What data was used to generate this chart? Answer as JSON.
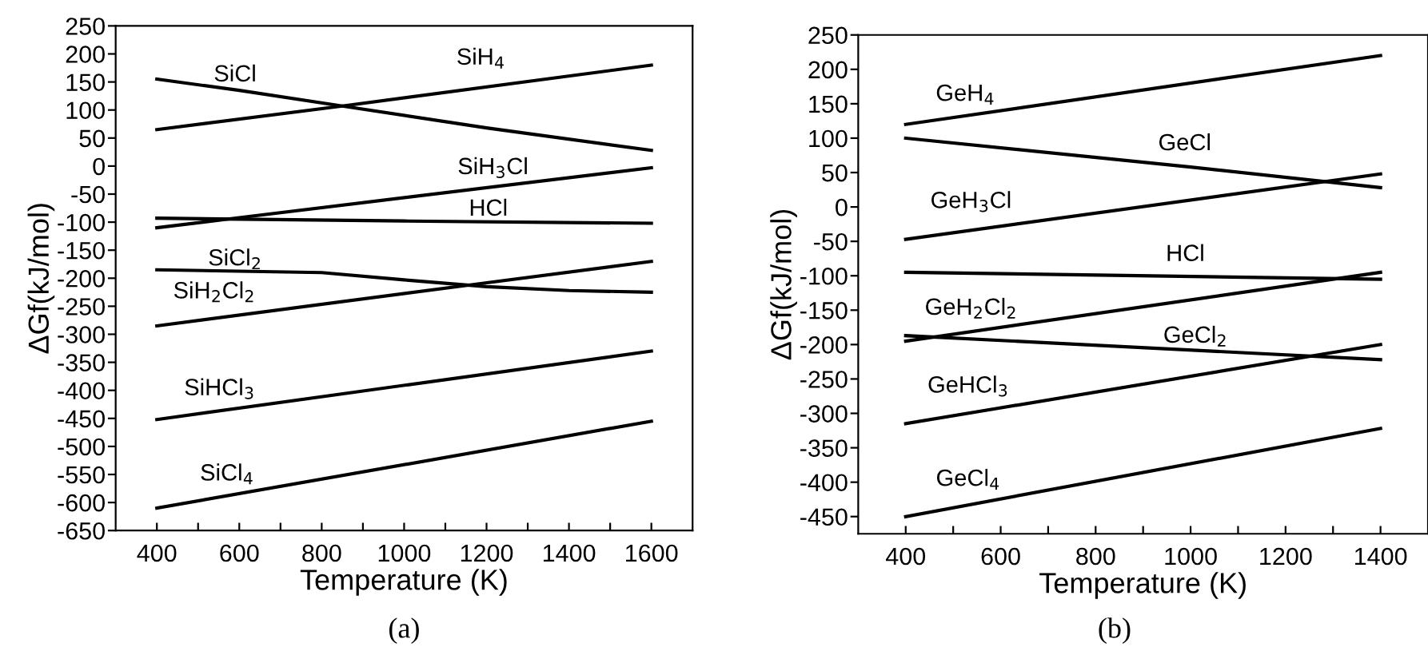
{
  "chart_data": [
    {
      "type": "line",
      "xlabel": "Temperature (K)",
      "ylabel": "ΔGf(kJ/mol)",
      "xlim": [
        300,
        1700
      ],
      "ylim": [
        -650,
        250
      ],
      "xticks": [
        400,
        {
          "value": 500,
          "label": null
        },
        600,
        {
          "value": 700,
          "label": null
        },
        800,
        {
          "value": 900,
          "label": null
        },
        1000,
        {
          "value": 1100,
          "label": null
        },
        1200,
        {
          "value": 1300,
          "label": null
        },
        1400,
        {
          "value": 1500,
          "label": null
        },
        1600
      ],
      "yticks": [
        -650,
        -600,
        -550,
        -500,
        -450,
        -400,
        -350,
        -300,
        -250,
        -200,
        -150,
        -100,
        -50,
        0,
        50,
        100,
        150,
        200,
        250
      ],
      "grid": false,
      "legend": false,
      "marker": "none",
      "line_style": "solid",
      "series": [
        {
          "name": "SiH$_{4}$",
          "color": "#000000",
          "x": [
            400,
            850,
            1600
          ],
          "values": [
            65,
            107,
            180
          ]
        },
        {
          "name": "SiCl",
          "color": "#000000",
          "x": [
            400,
            600,
            850,
            1200,
            1600
          ],
          "values": [
            155,
            135,
            107,
            68,
            28
          ]
        },
        {
          "name": "SiH$_{3}$Cl",
          "color": "#000000",
          "x": [
            400,
            600,
            1600
          ],
          "values": [
            -110,
            -92,
            -3
          ]
        },
        {
          "name": "HCl",
          "color": "#000000",
          "x": [
            400,
            1000,
            1600
          ],
          "values": [
            -93,
            -98,
            -102
          ]
        },
        {
          "name": "SiCl$_{2}$",
          "color": "#000000",
          "x": [
            400,
            800,
            1000,
            1200,
            1400,
            1600
          ],
          "values": [
            -185,
            -190,
            -203,
            -215,
            -222,
            -225
          ]
        },
        {
          "name": "SiH$_{2}$Cl$_{2}$",
          "color": "#000000",
          "x": [
            400,
            1160,
            1600
          ],
          "values": [
            -285,
            -212,
            -170
          ]
        },
        {
          "name": "SiHCl$_{3}$",
          "color": "#000000",
          "x": [
            400,
            1600
          ],
          "values": [
            -452,
            -330
          ]
        },
        {
          "name": "SiCl$_{4}$",
          "color": "#000000",
          "x": [
            400,
            1600
          ],
          "values": [
            -610,
            -455
          ]
        }
      ],
      "annotations": [
        "(a)"
      ]
    },
    {
      "type": "line",
      "xlabel": "Temperature (K)",
      "ylabel": "ΔGf(kJ/mol)",
      "xlim": [
        300,
        1500
      ],
      "ylim": [
        -475,
        250
      ],
      "xticks": [
        400,
        {
          "value": 500,
          "label": null
        },
        600,
        {
          "value": 700,
          "label": null
        },
        800,
        {
          "value": 900,
          "label": null
        },
        1000,
        {
          "value": 1100,
          "label": null
        },
        1200,
        {
          "value": 1300,
          "label": null
        },
        1400
      ],
      "yticks": [
        -450,
        -400,
        -350,
        -300,
        -250,
        -200,
        -150,
        -100,
        -50,
        0,
        50,
        100,
        150,
        200,
        250
      ],
      "grid": false,
      "legend": false,
      "marker": "none",
      "line_style": "solid",
      "series": [
        {
          "name": "GeH$_{4}$",
          "color": "#000000",
          "x": [
            400,
            1400
          ],
          "values": [
            120,
            220
          ]
        },
        {
          "name": "GeCl",
          "color": "#000000",
          "x": [
            400,
            1000,
            1400
          ],
          "values": [
            100,
            58,
            28
          ]
        },
        {
          "name": "GeH$_{3}$Cl",
          "color": "#000000",
          "x": [
            400,
            1400
          ],
          "values": [
            -47,
            48
          ]
        },
        {
          "name": "HCl",
          "color": "#000000",
          "x": [
            400,
            1400
          ],
          "values": [
            -95,
            -105
          ]
        },
        {
          "name": "GeH$_{2}$Cl$_{2}$",
          "color": "#000000",
          "x": [
            400,
            1400
          ],
          "values": [
            -195,
            -95
          ]
        },
        {
          "name": "GeCl$_{2}$",
          "color": "#000000",
          "x": [
            400,
            1400
          ],
          "values": [
            -187,
            -222
          ]
        },
        {
          "name": "GeHCl$_{3}$",
          "color": "#000000",
          "x": [
            400,
            1400
          ],
          "values": [
            -315,
            -200
          ]
        },
        {
          "name": "GeCl$_{4}$",
          "color": "#000000",
          "x": [
            400,
            1400
          ],
          "values": [
            -450,
            -322
          ]
        }
      ],
      "annotations": [
        "(b)"
      ]
    }
  ]
}
